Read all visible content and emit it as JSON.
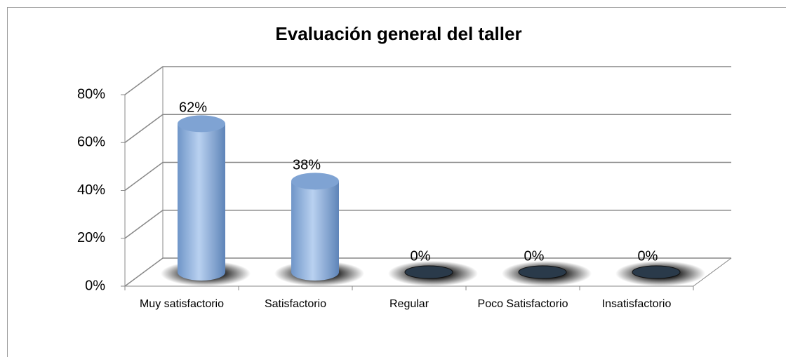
{
  "chart_data": {
    "type": "bar3d",
    "title": "Evaluación general del taller",
    "categories": [
      "Muy satisfactorio",
      "Satisfactorio",
      "Regular",
      "Poco Satisfactorio",
      "Insatisfactorio"
    ],
    "values": [
      62,
      38,
      0,
      0,
      0
    ],
    "value_labels": [
      "62%",
      "38%",
      "0%",
      "0%",
      "0%"
    ],
    "color": "#8eb4e3",
    "ylim": [
      0,
      80
    ],
    "yticks": [
      {
        "value": 0,
        "label": "0%"
      },
      {
        "value": 20,
        "label": "20%"
      },
      {
        "value": 40,
        "label": "40%"
      },
      {
        "value": 60,
        "label": "60%"
      },
      {
        "value": 80,
        "label": "80%"
      }
    ],
    "grid": true
  }
}
